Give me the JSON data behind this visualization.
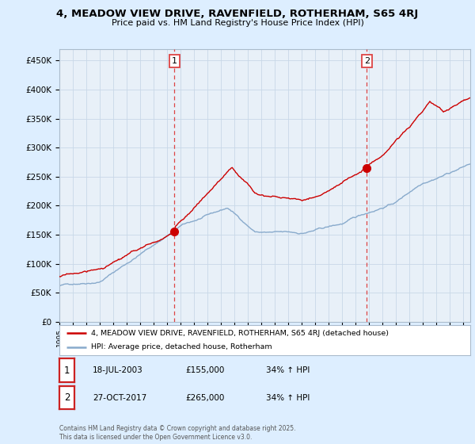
{
  "title": "4, MEADOW VIEW DRIVE, RAVENFIELD, ROTHERHAM, S65 4RJ",
  "subtitle": "Price paid vs. HM Land Registry's House Price Index (HPI)",
  "ylabel_ticks": [
    0,
    50000,
    100000,
    150000,
    200000,
    250000,
    300000,
    350000,
    400000,
    450000
  ],
  "ylim": [
    0,
    470000
  ],
  "xlim_start": 1995.0,
  "xlim_end": 2025.5,
  "sale1_date": 2003.54,
  "sale1_price": 155000,
  "sale1_label": "18-JUL-2003",
  "sale1_pct": "34% ↑ HPI",
  "sale2_date": 2017.83,
  "sale2_price": 265000,
  "sale2_label": "27-OCT-2017",
  "sale2_pct": "34% ↑ HPI",
  "line1_color": "#cc0000",
  "line2_color": "#88aacc",
  "marker_color": "#cc0000",
  "vline_color": "#dd4444",
  "bg_color": "#ddeeff",
  "plot_bg": "#e8f0f8",
  "legend_label1": "4, MEADOW VIEW DRIVE, RAVENFIELD, ROTHERHAM, S65 4RJ (detached house)",
  "legend_label2": "HPI: Average price, detached house, Rotherham",
  "footnote": "Contains HM Land Registry data © Crown copyright and database right 2025.\nThis data is licensed under the Open Government Licence v3.0.",
  "xtick_years": [
    1995,
    1996,
    1997,
    1998,
    1999,
    2000,
    2001,
    2002,
    2003,
    2004,
    2005,
    2006,
    2007,
    2008,
    2009,
    2010,
    2011,
    2012,
    2013,
    2014,
    2015,
    2016,
    2017,
    2018,
    2019,
    2020,
    2021,
    2022,
    2023,
    2024,
    2025
  ]
}
